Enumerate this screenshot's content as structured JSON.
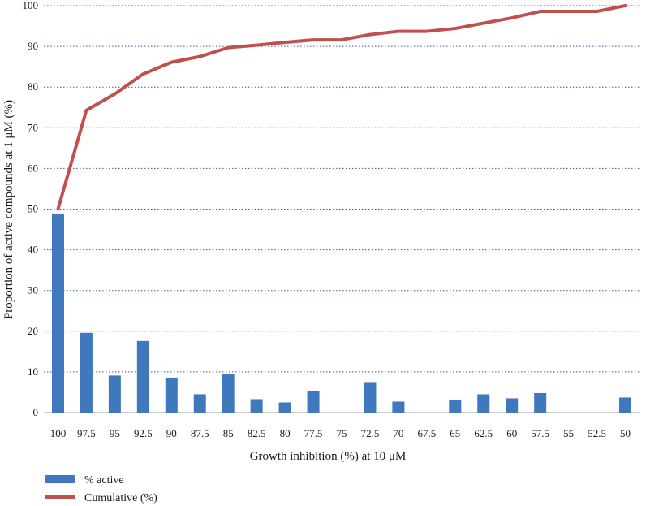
{
  "chart_data": {
    "type": "bar",
    "title": "",
    "xlabel": "Growth inhibition (%) at 10 μM",
    "ylabel": "Proportion of active compounds at 1 μM (%)",
    "ylim": [
      0,
      100
    ],
    "yticks": [
      0,
      10,
      20,
      30,
      40,
      50,
      60,
      70,
      80,
      90,
      100
    ],
    "grid": true,
    "legend_position": "bottom-left",
    "categories": [
      "100",
      "97.5",
      "95",
      "92.5",
      "90",
      "87.5",
      "85",
      "82.5",
      "80",
      "77.5",
      "75",
      "72.5",
      "70",
      "67.5",
      "65",
      "62.5",
      "60",
      "57.5",
      "55",
      "52.5",
      "50"
    ],
    "series": [
      {
        "name": "% active",
        "type": "bar",
        "color": "#3f78bd",
        "values": [
          48.8,
          19.6,
          9.1,
          17.6,
          8.6,
          4.5,
          9.4,
          3.3,
          2.5,
          5.3,
          0,
          7.5,
          2.7,
          0,
          3.2,
          4.5,
          3.5,
          4.8,
          0,
          0,
          3.7
        ]
      },
      {
        "name": "Cumulative (%)",
        "type": "line",
        "color": "#c0504d",
        "values": [
          50,
          74.3,
          78.3,
          83.2,
          86.1,
          87.5,
          89.7,
          90.3,
          91.0,
          91.6,
          91.6,
          92.9,
          93.7,
          93.7,
          94.4,
          95.7,
          97.0,
          98.6,
          98.6,
          98.6,
          100
        ]
      }
    ]
  }
}
